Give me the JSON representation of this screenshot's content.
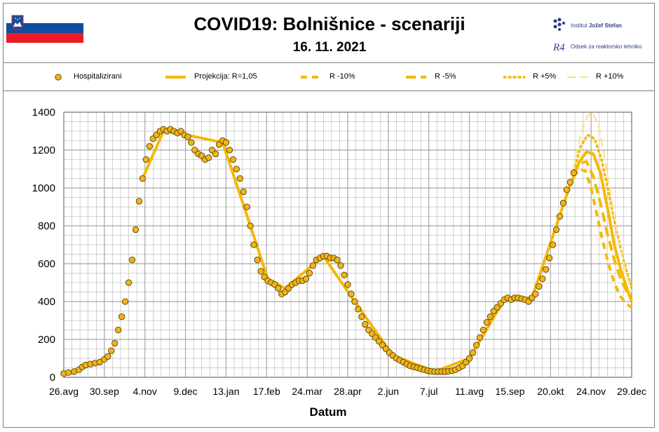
{
  "header": {
    "title": "COVID19: Bolnišnice - scenariji",
    "date": "16. 11. 2021",
    "logo_institute_prefix": "Institut ",
    "logo_institute_name": "Jožef Stefan",
    "logo_department": "Odsek za reaktorsko tehniko",
    "logo_mark": "R4"
  },
  "colors": {
    "accent": "#f6b800",
    "marker_fill": "#f0b41c",
    "marker_edge": "#5a4200",
    "grid": "#a6a6a6",
    "flag_white": "#ffffff",
    "flag_blue": "#0b4ea2",
    "flag_red": "#ed1c24"
  },
  "legend": [
    {
      "label": "Hospitalizirani",
      "style": "marker"
    },
    {
      "label": "Projekcija: R=1,05",
      "style": "solid"
    },
    {
      "label": "R -10%",
      "style": "dash-short"
    },
    {
      "label": "R -5%",
      "style": "dash-long"
    },
    {
      "label": "R +5%",
      "style": "dotted"
    },
    {
      "label": "R +10%",
      "style": "hollow-dash"
    }
  ],
  "chart_data": {
    "type": "line",
    "xlabel": "Datum",
    "ylabel": "",
    "ylim": [
      0,
      1400
    ],
    "yticks": [
      0,
      200,
      400,
      600,
      800,
      1000,
      1200,
      1400
    ],
    "xlim": [
      "2020-08-26",
      "2021-12-29"
    ],
    "xticks": [
      "26.avg",
      "30.sep",
      "4.nov",
      "9.dec",
      "13.jan",
      "17.feb",
      "24.mar",
      "28.apr",
      "2.jun",
      "7.jul",
      "11.avg",
      "15.sep",
      "20.okt",
      "24.nov",
      "29.dec"
    ],
    "grid": true,
    "legend_position": "top",
    "series": [
      {
        "name": "Hospitalizirani",
        "style": "marker",
        "points": [
          [
            "2020-08-26",
            20
          ],
          [
            "2020-08-30",
            25
          ],
          [
            "2020-09-04",
            30
          ],
          [
            "2020-09-08",
            40
          ],
          [
            "2020-09-11",
            55
          ],
          [
            "2020-09-14",
            65
          ],
          [
            "2020-09-18",
            70
          ],
          [
            "2020-09-22",
            75
          ],
          [
            "2020-09-26",
            80
          ],
          [
            "2020-09-30",
            95
          ],
          [
            "2020-10-03",
            110
          ],
          [
            "2020-10-06",
            140
          ],
          [
            "2020-10-09",
            180
          ],
          [
            "2020-10-12",
            250
          ],
          [
            "2020-10-15",
            320
          ],
          [
            "2020-10-18",
            400
          ],
          [
            "2020-10-21",
            500
          ],
          [
            "2020-10-24",
            620
          ],
          [
            "2020-10-27",
            780
          ],
          [
            "2020-10-30",
            930
          ],
          [
            "2020-11-02",
            1050
          ],
          [
            "2020-11-05",
            1150
          ],
          [
            "2020-11-08",
            1220
          ],
          [
            "2020-11-11",
            1260
          ],
          [
            "2020-11-14",
            1280
          ],
          [
            "2020-11-17",
            1300
          ],
          [
            "2020-11-20",
            1310
          ],
          [
            "2020-11-23",
            1300
          ],
          [
            "2020-11-26",
            1310
          ],
          [
            "2020-11-29",
            1300
          ],
          [
            "2020-12-02",
            1290
          ],
          [
            "2020-12-05",
            1300
          ],
          [
            "2020-12-08",
            1280
          ],
          [
            "2020-12-11",
            1270
          ],
          [
            "2020-12-14",
            1240
          ],
          [
            "2020-12-17",
            1200
          ],
          [
            "2020-12-20",
            1180
          ],
          [
            "2020-12-23",
            1170
          ],
          [
            "2020-12-26",
            1150
          ],
          [
            "2020-12-29",
            1160
          ],
          [
            "2021-01-01",
            1200
          ],
          [
            "2021-01-04",
            1180
          ],
          [
            "2021-01-07",
            1230
          ],
          [
            "2021-01-10",
            1250
          ],
          [
            "2021-01-13",
            1240
          ],
          [
            "2021-01-16",
            1200
          ],
          [
            "2021-01-19",
            1150
          ],
          [
            "2021-01-22",
            1100
          ],
          [
            "2021-01-25",
            1050
          ],
          [
            "2021-01-28",
            980
          ],
          [
            "2021-01-31",
            900
          ],
          [
            "2021-02-03",
            800
          ],
          [
            "2021-02-06",
            700
          ],
          [
            "2021-02-09",
            620
          ],
          [
            "2021-02-12",
            560
          ],
          [
            "2021-02-15",
            530
          ],
          [
            "2021-02-18",
            510
          ],
          [
            "2021-02-21",
            500
          ],
          [
            "2021-02-24",
            490
          ],
          [
            "2021-02-27",
            470
          ],
          [
            "2021-03-02",
            440
          ],
          [
            "2021-03-05",
            450
          ],
          [
            "2021-03-08",
            470
          ],
          [
            "2021-03-11",
            490
          ],
          [
            "2021-03-14",
            500
          ],
          [
            "2021-03-17",
            510
          ],
          [
            "2021-03-20",
            510
          ],
          [
            "2021-03-23",
            520
          ],
          [
            "2021-03-26",
            550
          ],
          [
            "2021-03-29",
            590
          ],
          [
            "2021-04-01",
            620
          ],
          [
            "2021-04-04",
            630
          ],
          [
            "2021-04-07",
            640
          ],
          [
            "2021-04-10",
            640
          ],
          [
            "2021-04-13",
            630
          ],
          [
            "2021-04-16",
            630
          ],
          [
            "2021-04-19",
            620
          ],
          [
            "2021-04-22",
            590
          ],
          [
            "2021-04-25",
            540
          ],
          [
            "2021-04-28",
            490
          ],
          [
            "2021-05-01",
            440
          ],
          [
            "2021-05-04",
            400
          ],
          [
            "2021-05-07",
            360
          ],
          [
            "2021-05-10",
            320
          ],
          [
            "2021-05-13",
            280
          ],
          [
            "2021-05-16",
            250
          ],
          [
            "2021-05-19",
            230
          ],
          [
            "2021-05-22",
            210
          ],
          [
            "2021-05-25",
            190
          ],
          [
            "2021-05-28",
            170
          ],
          [
            "2021-05-31",
            150
          ],
          [
            "2021-06-03",
            130
          ],
          [
            "2021-06-06",
            115
          ],
          [
            "2021-06-09",
            100
          ],
          [
            "2021-06-12",
            90
          ],
          [
            "2021-06-15",
            80
          ],
          [
            "2021-06-18",
            70
          ],
          [
            "2021-06-21",
            60
          ],
          [
            "2021-06-24",
            55
          ],
          [
            "2021-06-27",
            50
          ],
          [
            "2021-06-30",
            45
          ],
          [
            "2021-07-03",
            40
          ],
          [
            "2021-07-06",
            35
          ],
          [
            "2021-07-09",
            32
          ],
          [
            "2021-07-12",
            30
          ],
          [
            "2021-07-15",
            30
          ],
          [
            "2021-07-18",
            30
          ],
          [
            "2021-07-21",
            30
          ],
          [
            "2021-07-24",
            32
          ],
          [
            "2021-07-27",
            35
          ],
          [
            "2021-07-30",
            40
          ],
          [
            "2021-08-02",
            50
          ],
          [
            "2021-08-05",
            60
          ],
          [
            "2021-08-08",
            80
          ],
          [
            "2021-08-11",
            100
          ],
          [
            "2021-08-14",
            130
          ],
          [
            "2021-08-17",
            170
          ],
          [
            "2021-08-20",
            210
          ],
          [
            "2021-08-23",
            250
          ],
          [
            "2021-08-26",
            290
          ],
          [
            "2021-08-29",
            320
          ],
          [
            "2021-09-01",
            350
          ],
          [
            "2021-09-04",
            370
          ],
          [
            "2021-09-07",
            390
          ],
          [
            "2021-09-10",
            410
          ],
          [
            "2021-09-13",
            420
          ],
          [
            "2021-09-16",
            410
          ],
          [
            "2021-09-19",
            420
          ],
          [
            "2021-09-22",
            420
          ],
          [
            "2021-09-25",
            415
          ],
          [
            "2021-09-28",
            410
          ],
          [
            "2021-10-01",
            400
          ],
          [
            "2021-10-04",
            420
          ],
          [
            "2021-10-07",
            440
          ],
          [
            "2021-10-10",
            480
          ],
          [
            "2021-10-13",
            520
          ],
          [
            "2021-10-16",
            570
          ],
          [
            "2021-10-19",
            630
          ],
          [
            "2021-10-22",
            700
          ],
          [
            "2021-10-25",
            780
          ],
          [
            "2021-10-28",
            850
          ],
          [
            "2021-10-31",
            920
          ],
          [
            "2021-11-03",
            990
          ],
          [
            "2021-11-06",
            1030
          ],
          [
            "2021-11-09",
            1080
          ]
        ]
      },
      {
        "name": "Projekcija: R=1,05",
        "style": "solid",
        "points": [
          [
            "2020-11-02",
            1050
          ],
          [
            "2020-11-20",
            1300
          ],
          [
            "2020-12-10",
            1280
          ],
          [
            "2021-01-10",
            1240
          ],
          [
            "2021-02-03",
            800
          ],
          [
            "2021-02-18",
            520
          ],
          [
            "2021-03-05",
            470
          ],
          [
            "2021-04-07",
            640
          ],
          [
            "2021-05-04",
            400
          ],
          [
            "2021-06-06",
            115
          ],
          [
            "2021-07-12",
            30
          ],
          [
            "2021-08-11",
            100
          ],
          [
            "2021-09-10",
            410
          ],
          [
            "2021-10-04",
            420
          ],
          [
            "2021-11-05",
            1000
          ],
          [
            "2021-11-14",
            1140
          ],
          [
            "2021-11-20",
            1190
          ],
          [
            "2021-11-26",
            1180
          ],
          [
            "2021-12-02",
            1080
          ],
          [
            "2021-12-08",
            900
          ],
          [
            "2021-12-14",
            700
          ],
          [
            "2021-12-20",
            560
          ],
          [
            "2021-12-26",
            450
          ],
          [
            "2021-12-29",
            400
          ]
        ]
      },
      {
        "name": "R -10%",
        "style": "dash-short",
        "points": [
          [
            "2021-11-09",
            1060
          ],
          [
            "2021-11-14",
            1100
          ],
          [
            "2021-11-19",
            1090
          ],
          [
            "2021-11-24",
            1000
          ],
          [
            "2021-11-29",
            860
          ],
          [
            "2021-12-04",
            720
          ],
          [
            "2021-12-09",
            600
          ],
          [
            "2021-12-14",
            500
          ],
          [
            "2021-12-19",
            430
          ],
          [
            "2021-12-24",
            390
          ],
          [
            "2021-12-29",
            370
          ]
        ]
      },
      {
        "name": "R -5%",
        "style": "dash-long",
        "points": [
          [
            "2021-11-09",
            1070
          ],
          [
            "2021-11-14",
            1130
          ],
          [
            "2021-11-20",
            1140
          ],
          [
            "2021-11-26",
            1060
          ],
          [
            "2021-12-02",
            920
          ],
          [
            "2021-12-08",
            760
          ],
          [
            "2021-12-14",
            620
          ],
          [
            "2021-12-20",
            510
          ],
          [
            "2021-12-26",
            440
          ],
          [
            "2021-12-29",
            410
          ]
        ]
      },
      {
        "name": "R +5%",
        "style": "dotted",
        "points": [
          [
            "2021-11-09",
            1090
          ],
          [
            "2021-11-15",
            1220
          ],
          [
            "2021-11-21",
            1280
          ],
          [
            "2021-11-27",
            1260
          ],
          [
            "2021-12-03",
            1150
          ],
          [
            "2021-12-09",
            980
          ],
          [
            "2021-12-15",
            800
          ],
          [
            "2021-12-21",
            640
          ],
          [
            "2021-12-27",
            510
          ],
          [
            "2021-12-29",
            480
          ]
        ]
      },
      {
        "name": "R +10%",
        "style": "hollow-dash",
        "points": [
          [
            "2021-11-09",
            1100
          ],
          [
            "2021-11-15",
            1280
          ],
          [
            "2021-11-21",
            1380
          ],
          [
            "2021-11-25",
            1400
          ],
          [
            "2021-11-30",
            1340
          ],
          [
            "2021-12-05",
            1180
          ],
          [
            "2021-12-11",
            960
          ],
          [
            "2021-12-17",
            740
          ],
          [
            "2021-12-23",
            580
          ],
          [
            "2021-12-29",
            450
          ]
        ]
      }
    ]
  }
}
